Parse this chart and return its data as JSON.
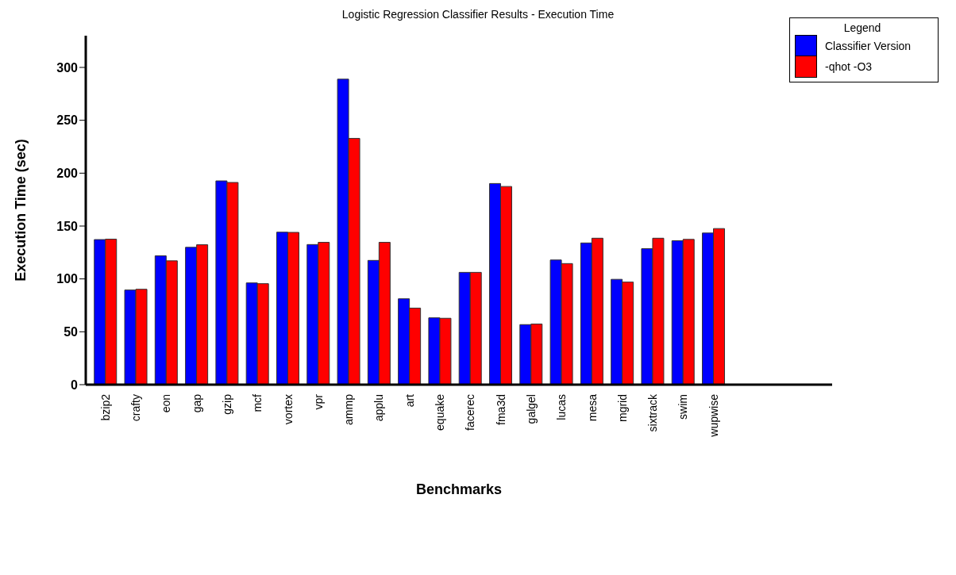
{
  "chart_data": {
    "type": "bar",
    "title": "Logistic Regression Classifier Results - Execution Time",
    "xlabel": "Benchmarks",
    "ylabel": "Execution Time (sec)",
    "legend_title": "Legend",
    "categories": [
      "bzip2",
      "crafty",
      "eon",
      "gap",
      "gzip",
      "mcf",
      "vortex",
      "vpr",
      "ammp",
      "applu",
      "art",
      "equake",
      "facerec",
      "fma3d",
      "galgel",
      "lucas",
      "mesa",
      "mgrid",
      "sixtrack",
      "swim",
      "wupwise"
    ],
    "series": [
      {
        "name": "Classifier Version",
        "color": "#0000ff",
        "values": [
          137.2,
          89.5,
          121.8,
          129.9,
          192.7,
          96.2,
          144.2,
          132.5,
          288.9,
          117.5,
          81.2,
          63.2,
          106.2,
          190.2,
          56.8,
          117.9,
          134.0,
          99.6,
          128.6,
          136.1,
          143.4
        ]
      },
      {
        "name": "-qhot -O3",
        "color": "#ff0000",
        "values": [
          137.6,
          90.2,
          117.1,
          132.3,
          191.2,
          95.5,
          144.0,
          134.6,
          232.9,
          134.6,
          72.4,
          62.8,
          106.2,
          187.4,
          57.3,
          114.5,
          138.5,
          97.0,
          138.5,
          137.4,
          147.6
        ]
      }
    ],
    "ylim": [
      0,
      330
    ],
    "yticks": [
      0,
      50,
      100,
      150,
      200,
      250,
      300
    ],
    "legend": "top right"
  }
}
